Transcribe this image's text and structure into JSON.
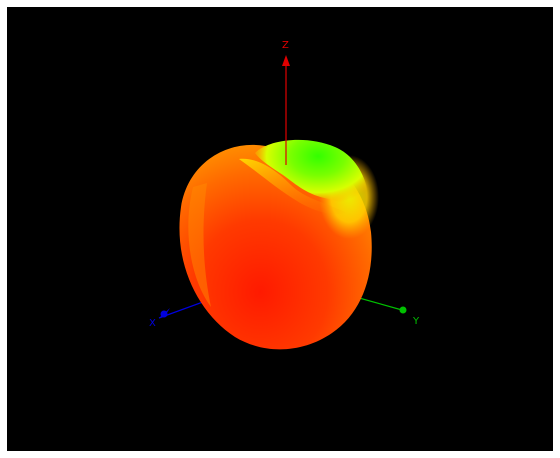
{
  "viewport": {
    "background": "#000000",
    "frame_color": "#ffffff"
  },
  "axes": {
    "z": {
      "label": "Z",
      "color": "#e00000"
    },
    "x": {
      "label": "X",
      "color": "#0000e0"
    },
    "y": {
      "label": "Y",
      "color": "#00c000"
    }
  },
  "surface": {
    "shape": "apple-like 3D polar surface",
    "colormap": [
      "#ff1a00",
      "#ff6a00",
      "#ffb000",
      "#e8ff00",
      "#7aff00",
      "#33ff00"
    ]
  }
}
